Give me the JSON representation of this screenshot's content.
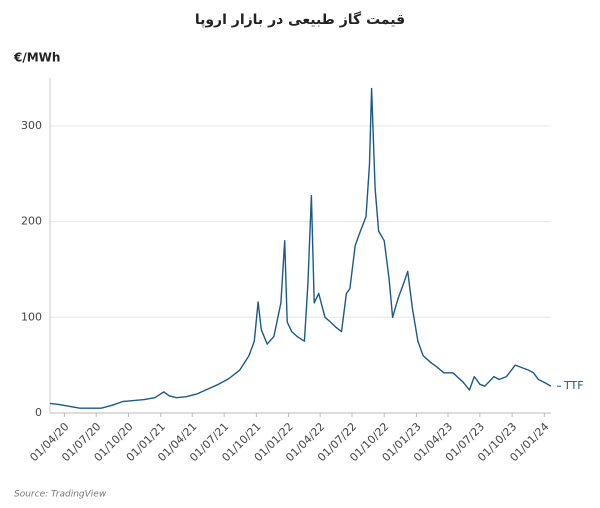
{
  "chart_data": {
    "type": "line",
    "title": "قیمت گاز طبیعی در بازار اروپا",
    "y_label": "€/MWh",
    "source": "Source: TradingView",
    "x": [
      "2020-02-20",
      "2020-03-15",
      "2020-04-15",
      "2020-05-15",
      "2020-06-15",
      "2020-07-15",
      "2020-08-15",
      "2020-09-15",
      "2020-10-15",
      "2020-11-15",
      "2020-12-15",
      "2021-01-10",
      "2021-01-25",
      "2021-02-15",
      "2021-03-15",
      "2021-04-15",
      "2021-05-15",
      "2021-06-15",
      "2021-07-15",
      "2021-08-15",
      "2021-09-10",
      "2021-09-25",
      "2021-10-06",
      "2021-10-15",
      "2021-11-01",
      "2021-11-20",
      "2021-12-10",
      "2021-12-21",
      "2021-12-28",
      "2022-01-10",
      "2022-01-25",
      "2022-02-15",
      "2022-02-25",
      "2022-03-07",
      "2022-03-15",
      "2022-03-28",
      "2022-04-15",
      "2022-05-01",
      "2022-05-15",
      "2022-06-01",
      "2022-06-15",
      "2022-06-25",
      "2022-07-10",
      "2022-07-25",
      "2022-08-10",
      "2022-08-20",
      "2022-08-26",
      "2022-09-05",
      "2022-09-15",
      "2022-10-01",
      "2022-10-15",
      "2022-10-25",
      "2022-11-10",
      "2022-11-25",
      "2022-12-07",
      "2022-12-20",
      "2023-01-05",
      "2023-01-20",
      "2023-02-10",
      "2023-03-01",
      "2023-03-20",
      "2023-04-15",
      "2023-05-15",
      "2023-06-01",
      "2023-06-15",
      "2023-07-01",
      "2023-07-15",
      "2023-08-10",
      "2023-08-25",
      "2023-09-15",
      "2023-10-10",
      "2023-10-25",
      "2023-11-15",
      "2023-12-01",
      "2023-12-15",
      "2024-01-01",
      "2024-01-20"
    ],
    "series": [
      {
        "name": "TTF",
        "color": "#1b5a86",
        "values": [
          10,
          9,
          7,
          5,
          5,
          5,
          8,
          12,
          13,
          14,
          16,
          22,
          18,
          16,
          17,
          20,
          25,
          30,
          36,
          45,
          60,
          75,
          116,
          87,
          72,
          80,
          115,
          180,
          95,
          85,
          80,
          75,
          135,
          227,
          115,
          125,
          100,
          95,
          90,
          85,
          125,
          130,
          175,
          190,
          205,
          260,
          339,
          235,
          190,
          180,
          140,
          100,
          120,
          135,
          148,
          110,
          75,
          60,
          53,
          48,
          42,
          42,
          32,
          24,
          38,
          30,
          28,
          38,
          35,
          38,
          50,
          48,
          45,
          42,
          35,
          32,
          28
        ]
      }
    ],
    "xlim": [
      "2020-02-20",
      "2024-01-20"
    ],
    "xticks": [
      {
        "value": "2020-04-01",
        "label": "01/04/20"
      },
      {
        "value": "2020-07-01",
        "label": "01/07/20"
      },
      {
        "value": "2020-10-01",
        "label": "01/10/20"
      },
      {
        "value": "2021-01-01",
        "label": "01/01/21"
      },
      {
        "value": "2021-04-01",
        "label": "01/04/21"
      },
      {
        "value": "2021-07-01",
        "label": "01/07/21"
      },
      {
        "value": "2021-10-01",
        "label": "01/10/21"
      },
      {
        "value": "2022-01-01",
        "label": "01/01/22"
      },
      {
        "value": "2022-04-01",
        "label": "01/04/22"
      },
      {
        "value": "2022-07-01",
        "label": "01/07/22"
      },
      {
        "value": "2022-10-01",
        "label": "01/10/22"
      },
      {
        "value": "2023-01-01",
        "label": "01/01/23"
      },
      {
        "value": "2023-04-01",
        "label": "01/04/23"
      },
      {
        "value": "2023-07-01",
        "label": "01/07/23"
      },
      {
        "value": "2023-10-01",
        "label": "01/10/23"
      },
      {
        "value": "2024-01-01",
        "label": "01/01/24"
      }
    ],
    "ylim": [
      0,
      350
    ],
    "yticks": [
      0,
      100,
      200,
      300
    ],
    "grid": true
  }
}
